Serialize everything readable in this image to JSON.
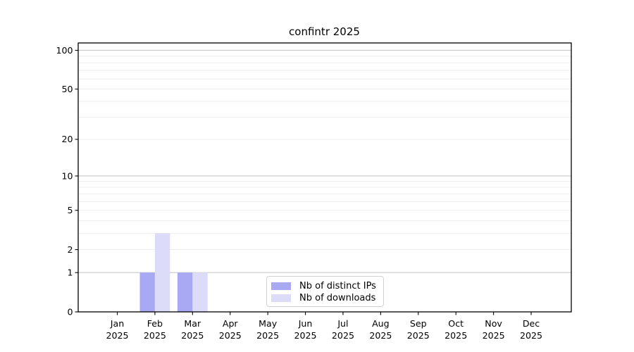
{
  "chart_data": {
    "type": "bar",
    "title": "confintr 2025",
    "categories": [
      "Jan 2025",
      "Feb 2025",
      "Mar 2025",
      "Apr 2025",
      "May 2025",
      "Jun 2025",
      "Jul 2025",
      "Aug 2025",
      "Sep 2025",
      "Oct 2025",
      "Nov 2025",
      "Dec 2025"
    ],
    "series": [
      {
        "name": "Nb of distinct IPs",
        "color": "#a8a8f3",
        "values": [
          0,
          1,
          1,
          0,
          0,
          0,
          0,
          0,
          0,
          0,
          0,
          0
        ]
      },
      {
        "name": "Nb of downloads",
        "color": "#dcdcf8",
        "values": [
          0,
          3,
          1,
          0,
          0,
          0,
          0,
          0,
          0,
          0,
          0,
          0
        ]
      }
    ],
    "yscale": "log1p",
    "ylim": [
      0,
      112
    ],
    "y_labeled_ticks": [
      "0",
      "1",
      "2",
      "5",
      "10",
      "20",
      "50",
      "100"
    ],
    "y_decade_gridlines": [
      1,
      10,
      100
    ],
    "y_minor_gridlines": [
      2,
      3,
      4,
      5,
      6,
      7,
      8,
      9,
      20,
      30,
      40,
      50,
      60,
      70,
      80,
      90
    ],
    "grid": true,
    "legend_position": "lower center",
    "style": {
      "major_grid_color": "#c7c7c7",
      "minor_grid_color": "#ededed",
      "axis_color": "#000000",
      "background_color": "#ffffff"
    }
  }
}
